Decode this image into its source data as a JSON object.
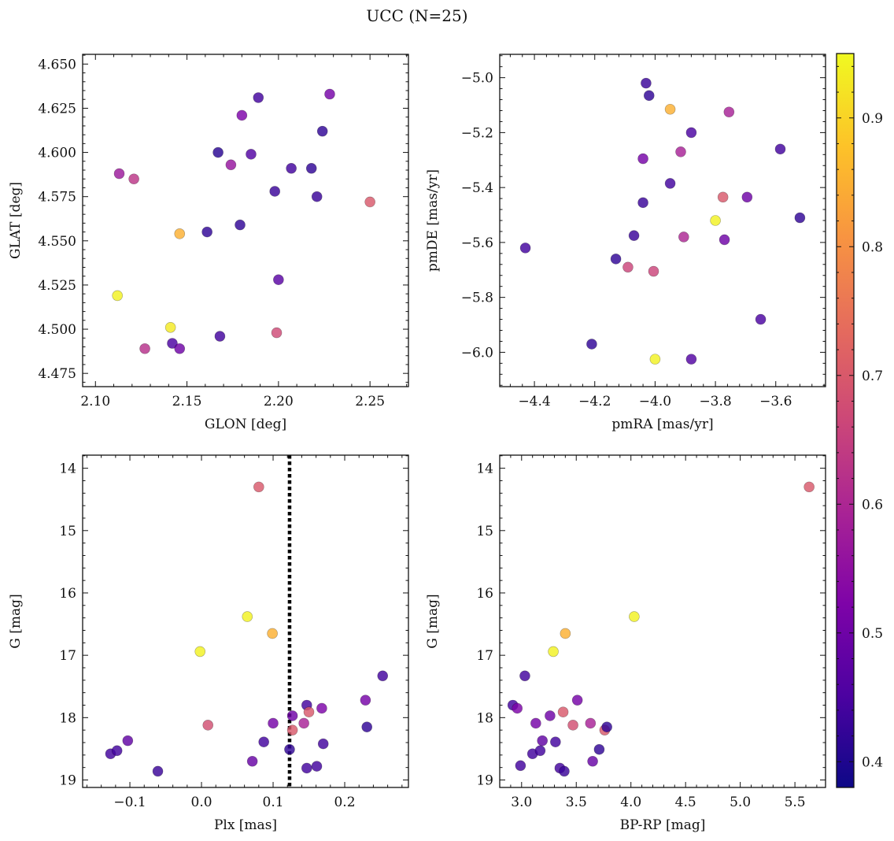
{
  "chart_data": {
    "title": "UCC (N=25)",
    "type": "scatter",
    "colorbar": {
      "range": [
        0.38,
        0.95
      ],
      "ticks": [
        0.4,
        0.5,
        0.6,
        0.7,
        0.8,
        0.9
      ],
      "tick_labels": [
        "0.4",
        "0.5",
        "0.6",
        "0.7",
        "0.8",
        "0.9"
      ],
      "colormap": "plasma"
    },
    "panels": [
      {
        "id": "glon-glat",
        "type": "scatter",
        "xlabel": "GLON [deg]",
        "ylabel": "GLAT [deg]",
        "xlim": [
          2.093,
          2.271
        ],
        "ylim": [
          4.4675,
          4.6555
        ],
        "xticks": [
          2.1,
          2.15,
          2.2,
          2.25
        ],
        "xtick_labels": [
          "2.10",
          "2.15",
          "2.20",
          "2.25"
        ],
        "yticks": [
          4.475,
          4.5,
          4.525,
          4.55,
          4.575,
          4.6,
          4.625,
          4.65
        ],
        "ytick_labels": [
          "4.475",
          "4.500",
          "4.525",
          "4.550",
          "4.575",
          "4.600",
          "4.625",
          "4.650"
        ],
        "points": [
          {
            "x": 2.112,
            "y": 4.519,
            "c": 0.94
          },
          {
            "x": 2.113,
            "y": 4.588,
            "c": 0.57
          },
          {
            "x": 2.121,
            "y": 4.585,
            "c": 0.63
          },
          {
            "x": 2.127,
            "y": 4.489,
            "c": 0.62
          },
          {
            "x": 2.141,
            "y": 4.501,
            "c": 0.93
          },
          {
            "x": 2.142,
            "y": 4.492,
            "c": 0.45
          },
          {
            "x": 2.146,
            "y": 4.554,
            "c": 0.85
          },
          {
            "x": 2.146,
            "y": 4.489,
            "c": 0.5
          },
          {
            "x": 2.161,
            "y": 4.555,
            "c": 0.42
          },
          {
            "x": 2.167,
            "y": 4.6,
            "c": 0.41
          },
          {
            "x": 2.168,
            "y": 4.496,
            "c": 0.44
          },
          {
            "x": 2.174,
            "y": 4.593,
            "c": 0.56
          },
          {
            "x": 2.179,
            "y": 4.559,
            "c": 0.42
          },
          {
            "x": 2.18,
            "y": 4.621,
            "c": 0.52
          },
          {
            "x": 2.185,
            "y": 4.599,
            "c": 0.46
          },
          {
            "x": 2.189,
            "y": 4.631,
            "c": 0.44
          },
          {
            "x": 2.198,
            "y": 4.578,
            "c": 0.43
          },
          {
            "x": 2.199,
            "y": 4.498,
            "c": 0.67
          },
          {
            "x": 2.2,
            "y": 4.528,
            "c": 0.47
          },
          {
            "x": 2.207,
            "y": 4.591,
            "c": 0.44
          },
          {
            "x": 2.218,
            "y": 4.591,
            "c": 0.42
          },
          {
            "x": 2.221,
            "y": 4.575,
            "c": 0.43
          },
          {
            "x": 2.224,
            "y": 4.612,
            "c": 0.42
          },
          {
            "x": 2.228,
            "y": 4.633,
            "c": 0.51
          },
          {
            "x": 2.25,
            "y": 4.572,
            "c": 0.7
          }
        ]
      },
      {
        "id": "pmra-pmde",
        "type": "scatter",
        "xlabel": "pmRA [mas/yr]",
        "ylabel": "pmDE [mas/yr]",
        "xlim": [
          -4.515,
          -3.435
        ],
        "ylim": [
          -6.125,
          -4.915
        ],
        "xticks": [
          -4.4,
          -4.2,
          -4.0,
          -3.8,
          -3.6
        ],
        "xtick_labels": [
          "−4.4",
          "−4.2",
          "−4.0",
          "−3.8",
          "−3.6"
        ],
        "yticks": [
          -6.0,
          -5.8,
          -5.6,
          -5.4,
          -5.2,
          -5.0
        ],
        "ytick_labels": [
          "−6.0",
          "−5.8",
          "−5.6",
          "−5.4",
          "−5.2",
          "−5.0"
        ],
        "points": [
          {
            "x": -4.43,
            "y": -5.62,
            "c": 0.44
          },
          {
            "x": -4.21,
            "y": -5.97,
            "c": 0.42
          },
          {
            "x": -4.13,
            "y": -5.66,
            "c": 0.42
          },
          {
            "x": -4.09,
            "y": -5.69,
            "c": 0.66
          },
          {
            "x": -4.07,
            "y": -5.575,
            "c": 0.43
          },
          {
            "x": -4.04,
            "y": -5.455,
            "c": 0.43
          },
          {
            "x": -4.04,
            "y": -5.295,
            "c": 0.51
          },
          {
            "x": -4.03,
            "y": -5.02,
            "c": 0.43
          },
          {
            "x": -4.02,
            "y": -5.065,
            "c": 0.42
          },
          {
            "x": -4.005,
            "y": -5.705,
            "c": 0.66
          },
          {
            "x": -4.0,
            "y": -6.025,
            "c": 0.94
          },
          {
            "x": -3.95,
            "y": -5.385,
            "c": 0.44
          },
          {
            "x": -3.95,
            "y": -5.115,
            "c": 0.85
          },
          {
            "x": -3.915,
            "y": -5.27,
            "c": 0.59
          },
          {
            "x": -3.905,
            "y": -5.58,
            "c": 0.6
          },
          {
            "x": -3.88,
            "y": -5.2,
            "c": 0.45
          },
          {
            "x": -3.88,
            "y": -6.025,
            "c": 0.46
          },
          {
            "x": -3.8,
            "y": -5.52,
            "c": 0.94
          },
          {
            "x": -3.775,
            "y": -5.435,
            "c": 0.7
          },
          {
            "x": -3.77,
            "y": -5.59,
            "c": 0.5
          },
          {
            "x": -3.755,
            "y": -5.125,
            "c": 0.59
          },
          {
            "x": -3.695,
            "y": -5.435,
            "c": 0.5
          },
          {
            "x": -3.65,
            "y": -5.88,
            "c": 0.45
          },
          {
            "x": -3.585,
            "y": -5.26,
            "c": 0.44
          },
          {
            "x": -3.52,
            "y": -5.51,
            "c": 0.42
          }
        ]
      },
      {
        "id": "plx-g",
        "type": "scatter",
        "xlabel": "Plx [mas]",
        "ylabel": "G [mag]",
        "xlim": [
          -0.166,
          0.289
        ],
        "ylim": [
          19.12,
          13.79
        ],
        "xticks": [
          -0.1,
          0.0,
          0.1,
          0.2
        ],
        "xtick_labels": [
          "−0.1",
          "0.0",
          "0.1",
          "0.2"
        ],
        "yticks": [
          14,
          15,
          16,
          17,
          18,
          19
        ],
        "ytick_labels": [
          "14",
          "15",
          "16",
          "17",
          "18",
          "19"
        ],
        "vline": {
          "x": 0.123,
          "style": "dotted"
        },
        "points": [
          {
            "x": -0.127,
            "y": 18.58,
            "c": 0.44
          },
          {
            "x": -0.118,
            "y": 18.53,
            "c": 0.44
          },
          {
            "x": -0.103,
            "y": 18.37,
            "c": 0.48
          },
          {
            "x": -0.061,
            "y": 18.86,
            "c": 0.43
          },
          {
            "x": -0.002,
            "y": 16.94,
            "c": 0.94
          },
          {
            "x": 0.009,
            "y": 18.12,
            "c": 0.68
          },
          {
            "x": 0.064,
            "y": 16.38,
            "c": 0.94
          },
          {
            "x": 0.071,
            "y": 18.7,
            "c": 0.49
          },
          {
            "x": 0.08,
            "y": 14.3,
            "c": 0.7
          },
          {
            "x": 0.087,
            "y": 18.39,
            "c": 0.44
          },
          {
            "x": 0.099,
            "y": 16.65,
            "c": 0.85
          },
          {
            "x": 0.1,
            "y": 18.09,
            "c": 0.51
          },
          {
            "x": 0.123,
            "y": 18.51,
            "c": 0.42
          },
          {
            "x": 0.127,
            "y": 18.2,
            "c": 0.7
          },
          {
            "x": 0.127,
            "y": 17.97,
            "c": 0.5
          },
          {
            "x": 0.143,
            "y": 18.09,
            "c": 0.59
          },
          {
            "x": 0.147,
            "y": 17.8,
            "c": 0.44
          },
          {
            "x": 0.147,
            "y": 18.81,
            "c": 0.44
          },
          {
            "x": 0.15,
            "y": 17.91,
            "c": 0.7
          },
          {
            "x": 0.161,
            "y": 18.78,
            "c": 0.44
          },
          {
            "x": 0.168,
            "y": 17.85,
            "c": 0.52
          },
          {
            "x": 0.17,
            "y": 18.42,
            "c": 0.44
          },
          {
            "x": 0.229,
            "y": 17.72,
            "c": 0.51
          },
          {
            "x": 0.231,
            "y": 18.15,
            "c": 0.42
          },
          {
            "x": 0.253,
            "y": 17.33,
            "c": 0.44
          }
        ]
      },
      {
        "id": "bprp-g",
        "type": "scatter",
        "xlabel": "BP-RP [mag]",
        "ylabel": "G [mag]",
        "xlim": [
          2.8,
          5.78
        ],
        "ylim": [
          19.12,
          13.79
        ],
        "xticks": [
          3.0,
          3.5,
          4.0,
          4.5,
          5.0,
          5.5
        ],
        "xtick_labels": [
          "3.0",
          "3.5",
          "4.0",
          "4.5",
          "5.0",
          "5.5"
        ],
        "yticks": [
          14,
          15,
          16,
          17,
          18,
          19
        ],
        "ytick_labels": [
          "14",
          "15",
          "16",
          "17",
          "18",
          "19"
        ],
        "points": [
          {
            "x": 2.92,
            "y": 17.8,
            "c": 0.44
          },
          {
            "x": 2.96,
            "y": 17.85,
            "c": 0.52
          },
          {
            "x": 2.99,
            "y": 18.77,
            "c": 0.44
          },
          {
            "x": 3.03,
            "y": 17.33,
            "c": 0.44
          },
          {
            "x": 3.1,
            "y": 18.58,
            "c": 0.44
          },
          {
            "x": 3.13,
            "y": 18.09,
            "c": 0.51
          },
          {
            "x": 3.17,
            "y": 18.53,
            "c": 0.44
          },
          {
            "x": 3.19,
            "y": 18.37,
            "c": 0.48
          },
          {
            "x": 3.26,
            "y": 17.97,
            "c": 0.5
          },
          {
            "x": 3.29,
            "y": 16.94,
            "c": 0.94
          },
          {
            "x": 3.31,
            "y": 18.39,
            "c": 0.44
          },
          {
            "x": 3.35,
            "y": 18.81,
            "c": 0.44
          },
          {
            "x": 3.38,
            "y": 17.91,
            "c": 0.7
          },
          {
            "x": 3.39,
            "y": 18.86,
            "c": 0.43
          },
          {
            "x": 3.4,
            "y": 16.65,
            "c": 0.85
          },
          {
            "x": 3.47,
            "y": 18.12,
            "c": 0.68
          },
          {
            "x": 3.51,
            "y": 17.72,
            "c": 0.51
          },
          {
            "x": 3.63,
            "y": 18.09,
            "c": 0.59
          },
          {
            "x": 3.65,
            "y": 18.7,
            "c": 0.49
          },
          {
            "x": 3.71,
            "y": 18.51,
            "c": 0.42
          },
          {
            "x": 3.76,
            "y": 18.2,
            "c": 0.7
          },
          {
            "x": 3.78,
            "y": 18.15,
            "c": 0.42
          },
          {
            "x": 4.03,
            "y": 16.38,
            "c": 0.94
          },
          {
            "x": 5.63,
            "y": 14.3,
            "c": 0.7
          }
        ]
      }
    ]
  }
}
